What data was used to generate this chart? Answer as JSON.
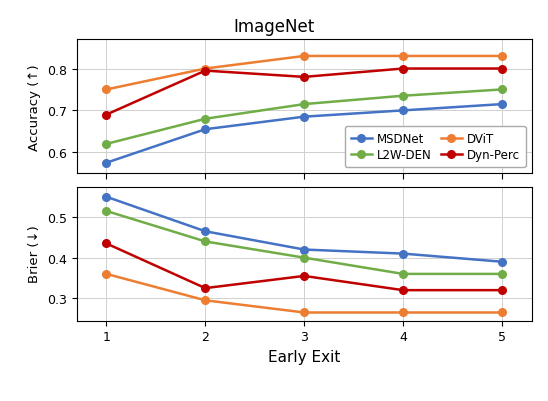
{
  "title": "ImageNet",
  "xlabel": "Early Exit",
  "x": [
    1,
    2,
    3,
    4,
    5
  ],
  "accuracy": {
    "MSDNet": [
      0.575,
      0.655,
      0.685,
      0.7,
      0.715
    ],
    "DViT": [
      0.75,
      0.8,
      0.83,
      0.83,
      0.83
    ],
    "L2W-DEN": [
      0.62,
      0.68,
      0.715,
      0.735,
      0.75
    ],
    "Dyn-Perc": [
      0.69,
      0.795,
      0.78,
      0.8,
      0.8
    ]
  },
  "brier": {
    "MSDNet": [
      0.55,
      0.465,
      0.42,
      0.41,
      0.39
    ],
    "DViT": [
      0.36,
      0.295,
      0.265,
      0.265,
      0.265
    ],
    "L2W-DEN": [
      0.515,
      0.44,
      0.4,
      0.36,
      0.36
    ],
    "Dyn-Perc": [
      0.435,
      0.325,
      0.355,
      0.32,
      0.32
    ]
  },
  "colors": {
    "MSDNet": "#4472c4",
    "DViT": "#ed7d31",
    "L2W-DEN": "#70ad47",
    "Dyn-Perc": "#c00000"
  },
  "accuracy_ylabel": "Accuracy (↑)",
  "brier_ylabel": "Brier (↓)",
  "acc_ylim": [
    0.55,
    0.87
  ],
  "brier_ylim": [
    0.245,
    0.575
  ],
  "acc_yticks": [
    0.6,
    0.7,
    0.8
  ],
  "brier_yticks": [
    0.3,
    0.4,
    0.5
  ],
  "legend_col1": [
    "MSDNet",
    "DViT"
  ],
  "legend_col2": [
    "L2W-DEN",
    "Dyn-Perc"
  ],
  "marker": "o",
  "linewidth": 1.8,
  "markersize": 5.5,
  "title_fontsize": 12,
  "ylabel_fontsize": 9.5,
  "xlabel_fontsize": 11,
  "tick_fontsize": 9,
  "legend_fontsize": 8.5
}
